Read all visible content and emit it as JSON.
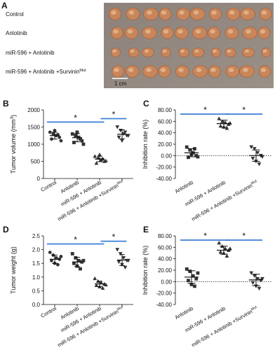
{
  "photo_panel": {
    "panel": "A",
    "labels": [
      "Control",
      "Anlotinib",
      "miR-596 + Anlotinib",
      "miR-596 + Anlotinib +Survinin"
    ],
    "label_superscripts": [
      null,
      null,
      null,
      "Mut"
    ],
    "scale_label": "1 cm"
  },
  "chart_data": [
    {
      "type": "dotplot",
      "panel": "B",
      "ylabel": "Tumor volume (mm",
      "ylabel_superscript": "3",
      "ylabel_tail": ")",
      "categories": [
        "Control",
        "Anlotinib",
        "miR-596 + Anlotinib",
        "miR-596 + Anlotinib +Survinin"
      ],
      "category_superscripts": [
        null,
        null,
        null,
        "Mut"
      ],
      "markers": [
        "circle",
        "square",
        "triangle",
        "triangle-down"
      ],
      "points": [
        [
          1350,
          1300,
          1250,
          1200,
          1150,
          1400,
          1280,
          1100
        ],
        [
          1300,
          1250,
          1200,
          1100,
          1050,
          1350,
          1150,
          1000
        ],
        [
          650,
          600,
          550,
          500,
          450,
          700,
          580,
          520
        ],
        [
          1500,
          1400,
          1300,
          1250,
          1200,
          1100,
          1350,
          1250
        ]
      ],
      "means": [
        1250,
        1190,
        570,
        1290
      ],
      "sd": [
        100,
        120,
        80,
        130
      ],
      "ylim": [
        0,
        2000
      ],
      "yticks": [
        0,
        500,
        1000,
        1500,
        2000
      ],
      "zero_line": false,
      "color": "#333333",
      "bracket_color": "#3a7fd5",
      "brackets": [
        {
          "from": 0,
          "to": 2,
          "label": "*"
        },
        {
          "from": 2,
          "to": 3,
          "label": "*"
        }
      ]
    },
    {
      "type": "dotplot",
      "panel": "C",
      "ylabel": "Inhibition rate (%)",
      "categories": [
        "Anlotinib",
        "miR-596 + Anlotinib",
        "miR-596 + Anlotinib +Survinin"
      ],
      "category_superscripts": [
        null,
        null,
        "Mut"
      ],
      "markers": [
        "square",
        "triangle",
        "triangle-down"
      ],
      "points": [
        [
          15,
          10,
          5,
          0,
          -3,
          2,
          12,
          -2
        ],
        [
          65,
          60,
          58,
          55,
          52,
          50,
          48,
          57
        ],
        [
          15,
          12,
          5,
          0,
          -5,
          -10,
          -15,
          -2
        ]
      ],
      "means": [
        5,
        56,
        0
      ],
      "sd": [
        7,
        6,
        10
      ],
      "ylim": [
        -40,
        80
      ],
      "yticks": [
        {
          "value": -40,
          "label": "-40.00"
        },
        {
          "value": -20,
          "label": "-20.00"
        },
        {
          "value": 0,
          "label": "0.00"
        },
        {
          "value": 20,
          "label": "20.00"
        },
        {
          "value": 40,
          "label": "40.00"
        },
        {
          "value": 60,
          "label": "60.00"
        },
        {
          "value": 80,
          "label": "80.00"
        }
      ],
      "zero_line": true,
      "color": "#333333",
      "bracket_color": "#3a7fd5",
      "brackets": [
        {
          "from": 0,
          "to": 1,
          "label": "*"
        },
        {
          "from": 1,
          "to": 2,
          "label": "*"
        }
      ]
    },
    {
      "type": "dotplot",
      "panel": "D",
      "ylabel": "Tumor weight (g)",
      "categories": [
        "Control",
        "Anlotinib",
        "miR-596 + Anlotinib",
        "miR-596 + Anlotinib +Survinin"
      ],
      "category_superscripts": [
        null,
        null,
        null,
        "Mut"
      ],
      "markers": [
        "circle",
        "square",
        "triangle",
        "triangle-down"
      ],
      "points": [
        [
          1.9,
          1.8,
          1.7,
          1.65,
          1.6,
          1.5,
          1.45,
          1.75
        ],
        [
          1.85,
          1.7,
          1.6,
          1.55,
          1.5,
          1.4,
          1.3,
          1.6
        ],
        [
          0.95,
          0.85,
          0.8,
          0.75,
          0.7,
          0.65,
          0.6,
          0.72
        ],
        [
          2.0,
          1.85,
          1.7,
          1.6,
          1.55,
          1.45,
          1.35,
          1.6
        ]
      ],
      "means": [
        1.65,
        1.55,
        0.75,
        1.62
      ],
      "sd": [
        0.15,
        0.17,
        0.1,
        0.2
      ],
      "ylim": [
        0,
        2.5
      ],
      "yticks": [
        {
          "value": 0,
          "label": "0.0"
        },
        0.5,
        {
          "value": 1,
          "label": "1.0"
        },
        1.5,
        {
          "value": 2,
          "label": "2.0"
        },
        2.5
      ],
      "zero_line": false,
      "color": "#333333",
      "bracket_color": "#3a7fd5",
      "brackets": [
        {
          "from": 0,
          "to": 2,
          "label": "*"
        },
        {
          "from": 2,
          "to": 3,
          "label": "*"
        }
      ]
    },
    {
      "type": "dotplot",
      "panel": "E",
      "ylabel": "Inhibition rate (%)",
      "categories": [
        "Anlotinib",
        "miR-596 + Anlotinib",
        "miR-596 + Anlotinib +Survinin"
      ],
      "category_superscripts": [
        null,
        null,
        "Mut"
      ],
      "markers": [
        "square",
        "triangle",
        "triangle-down"
      ],
      "points": [
        [
          22,
          18,
          10,
          5,
          2,
          -5,
          -8,
          15
        ],
        [
          68,
          62,
          58,
          55,
          52,
          50,
          45,
          58
        ],
        [
          15,
          10,
          5,
          2,
          -2,
          -8,
          -12,
          5
        ]
      ],
      "means": [
        8,
        55,
        3
      ],
      "sd": [
        11,
        7,
        10
      ],
      "ylim": [
        -40,
        80
      ],
      "yticks": [
        {
          "value": -40,
          "label": "-40.00"
        },
        {
          "value": -20,
          "label": "-20.00"
        },
        {
          "value": 0,
          "label": "0.00"
        },
        {
          "value": 20,
          "label": "20.00"
        },
        {
          "value": 40,
          "label": "40.00"
        },
        {
          "value": 60,
          "label": "60.00"
        },
        {
          "value": 80,
          "label": "80.00"
        }
      ],
      "zero_line": true,
      "color": "#333333",
      "bracket_color": "#3a7fd5",
      "brackets": [
        {
          "from": 0,
          "to": 1,
          "label": "*"
        },
        {
          "from": 1,
          "to": 2,
          "label": "*"
        }
      ]
    }
  ]
}
